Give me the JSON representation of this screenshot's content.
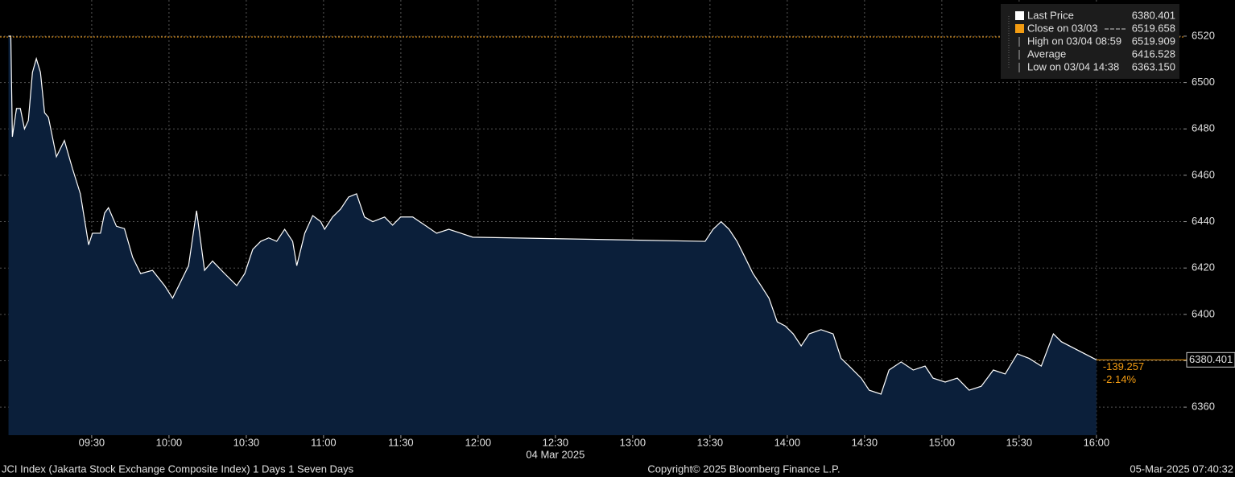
{
  "chart_data": {
    "type": "area",
    "x": [
      537.7,
      538.6,
      539.2,
      540.8,
      542.3,
      543.9,
      545.4,
      547,
      548.5,
      550.1,
      551.7,
      553.2,
      556.3,
      559.4,
      562.5,
      565.6,
      568.8,
      570.3,
      573.4,
      575,
      576.5,
      579.6,
      582.7,
      585.9,
      589,
      593.6,
      598.3,
      601.4,
      604.5,
      607.6,
      610.7,
      613.8,
      616.9,
      621.6,
      626.3,
      629.4,
      632.5,
      635.6,
      638.7,
      641.8,
      644.9,
      648,
      649.6,
      652.7,
      655.8,
      658.9,
      660.4,
      663.5,
      666.6,
      669.7,
      672.8,
      675.9,
      679.1,
      683.7,
      686.8,
      689.9,
      694.6,
      699.3,
      703.9,
      708.6,
      713.3,
      717.9,
      808.1,
      811.2,
      814.3,
      817.4,
      820.5,
      823.6,
      826.7,
      829.8,
      832.9,
      836.1,
      839.2,
      842.3,
      845.4,
      848.5,
      853.1,
      857.8,
      860.9,
      864,
      868.7,
      871.8,
      876.4,
      879.5,
      884.2,
      888.9,
      893.5,
      896.6,
      901.3,
      906,
      910.6,
      915.3,
      920,
      924.6,
      929.3,
      933.9,
      938.6,
      943.3,
      946.4,
      960
    ],
    "series": [
      {
        "name": "Last Price",
        "color": "#ffffff",
        "fill": "#0b1f3a",
        "values": [
          6520,
          6520,
          6476.6,
          6488.8,
          6488.8,
          6480,
          6483.6,
          6504.4,
          6510.3,
          6504.4,
          6487,
          6485,
          6468,
          6475,
          6463,
          6452,
          6430,
          6435,
          6435,
          6443.7,
          6446,
          6438,
          6437,
          6424.6,
          6417.6,
          6419,
          6412.4,
          6407,
          6414,
          6421,
          6444.7,
          6419,
          6423,
          6417.6,
          6412.4,
          6417.6,
          6428,
          6431.5,
          6433,
          6431.5,
          6436.7,
          6431.5,
          6421,
          6435,
          6442.6,
          6440,
          6436.7,
          6442,
          6445.4,
          6450.6,
          6452,
          6442,
          6440,
          6442,
          6438.5,
          6442,
          6442,
          6438.5,
          6435,
          6436.7,
          6435,
          6433.3,
          6431.5,
          6436.7,
          6440,
          6436.7,
          6431.5,
          6424.6,
          6417.6,
          6412.4,
          6407,
          6396.8,
          6395,
          6391.6,
          6386.4,
          6391.6,
          6393.4,
          6391.6,
          6381,
          6377.7,
          6372.5,
          6367.3,
          6365.6,
          6376,
          6379.5,
          6376,
          6377.7,
          6372.5,
          6370.8,
          6372.5,
          6367.3,
          6369,
          6376,
          6374.3,
          6383,
          6381,
          6377.7,
          6391.6,
          6388.2,
          6380.401
        ]
      }
    ],
    "legend_entries": [
      {
        "name": "Last Price",
        "value": 6380.401,
        "color": "#ffffff"
      },
      {
        "name": "Close on 03/03",
        "value": 6519.658,
        "color": "#f39c12"
      },
      {
        "name": "High on 03/04 08:59",
        "value": 6519.909,
        "color": "#aaaaaa"
      },
      {
        "name": "Average",
        "value": 6416.528,
        "color": "#aaaaaa"
      },
      {
        "name": "Low on 03/04 14:38",
        "value": {
          "value": 6363.15,
          "label": "6363.150"
        },
        "color": "#aaaaaa"
      }
    ],
    "last_price_label": 6380.401,
    "change": -139.257,
    "change_pct": {
      "value": -2.14,
      "label": "-2.14%"
    },
    "xlim": [
      534.4,
      993.8
    ],
    "xticks": [
      {
        "value": 570,
        "label": "09:30"
      },
      {
        "value": 600,
        "label": "10:00"
      },
      {
        "value": 630,
        "label": "10:30"
      },
      {
        "value": 660,
        "label": "11:00"
      },
      {
        "value": 690,
        "label": "11:30"
      },
      {
        "value": 720,
        "label": "12:00"
      },
      {
        "value": 750,
        "label": "12:30"
      },
      {
        "value": 780,
        "label": "13:00"
      },
      {
        "value": 810,
        "label": "13:30"
      },
      {
        "value": 840,
        "label": "14:00"
      },
      {
        "value": 870,
        "label": "14:30"
      },
      {
        "value": 900,
        "label": "15:00"
      },
      {
        "value": 930,
        "label": "15:30"
      },
      {
        "value": 960,
        "label": "16:00"
      }
    ],
    "date_label": "04 Mar 2025",
    "ylim": [
      6347.9,
      6535.6
    ],
    "yticks": [
      6360,
      6380,
      6400,
      6420,
      6440,
      6460,
      6480,
      6500,
      6520
    ],
    "grid": true,
    "footer_left": "JCI Index (Jakarta Stock Exchange Composite Index) 1 Days 1 Seven Days",
    "footer_center": "Copyright© 2025 Bloomberg Finance L.P.",
    "footer_right": "05-Mar-2025 07:40:32"
  }
}
